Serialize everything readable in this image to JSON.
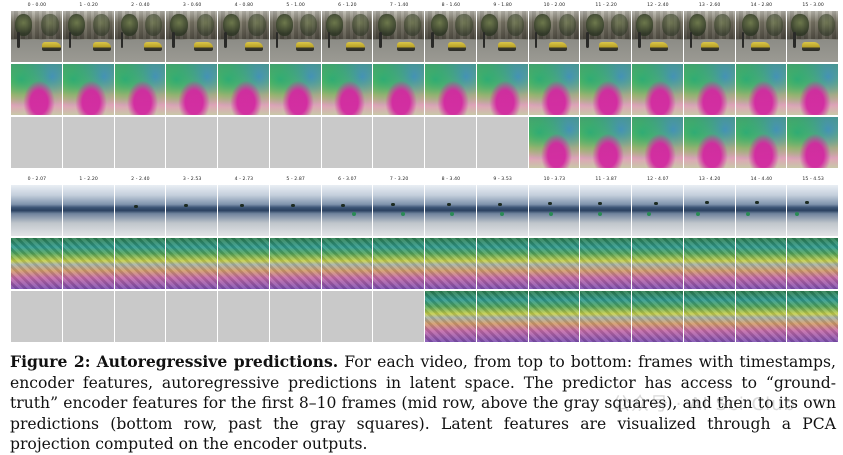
{
  "top_block": {
    "timestamps": [
      "0 - 0.00",
      "1 - 0.20",
      "2 - 0.40",
      "3 - 0.60",
      "4 - 0.80",
      "5 - 1.00",
      "6 - 1.20",
      "7 - 1.40",
      "8 - 1.60",
      "9 - 1.80",
      "10 - 2.00",
      "11 - 2.20",
      "12 - 2.40",
      "13 - 2.60",
      "14 - 2.80",
      "15 - 3.00"
    ],
    "gray_count": 10
  },
  "bottom_block": {
    "timestamps": [
      "0 - 2.07",
      "1 - 2.20",
      "2 - 2.40",
      "3 - 2.53",
      "4 - 2.73",
      "5 - 2.87",
      "6 - 3.07",
      "7 - 3.20",
      "8 - 3.40",
      "9 - 3.53",
      "10 - 3.73",
      "11 - 3.87",
      "12 - 4.07",
      "13 - 4.20",
      "14 - 4.40",
      "15 - 4.53"
    ],
    "gray_count": 8
  },
  "caption": {
    "label": "Figure 2:",
    "title": "Autoregressive predictions.",
    "text": " For each video, from top to bottom: frames with timestamps, encoder features, autoregressive predictions in latent space. The predictor has access to “ground-truth” encoder features for the first 8–10 frames (mid row, above the gray squares), and then to its own predictions (bottom row, past the gray squares). Latent features are visualized through a PCA projection computed on the encoder outputs."
  },
  "watermark": "公众号 · AI Sci Club"
}
